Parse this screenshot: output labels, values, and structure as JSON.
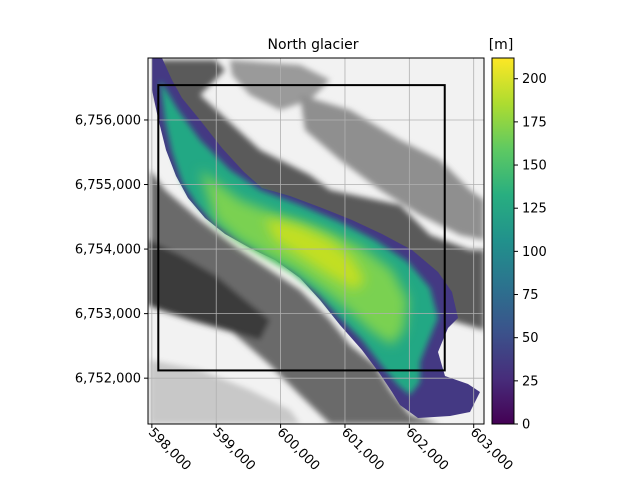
{
  "chart_data": {
    "type": "heatmap",
    "title": "North glacier",
    "xlabel": "",
    "ylabel": "",
    "xlim": [
      597940,
      603160
    ],
    "ylim": [
      6751290,
      6756960
    ],
    "x_ticks": [
      598000,
      599000,
      600000,
      601000,
      602000,
      603000
    ],
    "y_ticks": [
      6752000,
      6753000,
      6754000,
      6755000,
      6756000
    ],
    "x_tick_labels": [
      "598,000",
      "599,000",
      "600,000",
      "601,000",
      "602,000",
      "603,000"
    ],
    "y_tick_labels": [
      "6,752,000",
      "6,753,000",
      "6,754,000",
      "6,755,000",
      "6,756,000"
    ],
    "grid": true,
    "background": "grayscale hillshade",
    "colormap": "viridis",
    "colorbar": {
      "label": "[m]",
      "min": 0,
      "max": 212,
      "ticks": [
        0,
        25,
        50,
        75,
        100,
        125,
        150,
        175,
        200
      ],
      "tick_labels": [
        "0",
        "25",
        "50",
        "75",
        "100",
        "125",
        "150",
        "175",
        "200"
      ]
    },
    "glacier_centerline": [
      [
        598150,
        6756820,
        0
      ],
      [
        598500,
        6756150,
        70
      ],
      [
        598900,
        6755500,
        120
      ],
      [
        599400,
        6755000,
        135
      ],
      [
        599850,
        6754560,
        160
      ],
      [
        600200,
        6754280,
        180
      ],
      [
        600700,
        6754100,
        182
      ],
      [
        601100,
        6753850,
        195
      ],
      [
        601500,
        6753550,
        185
      ],
      [
        601900,
        6753050,
        175
      ],
      [
        602100,
        6752600,
        150
      ],
      [
        602300,
        6752100,
        95
      ],
      [
        602600,
        6751800,
        30
      ],
      [
        602900,
        6751600,
        0
      ]
    ],
    "outline_box": {
      "x": [
        598100,
        602550
      ],
      "y": [
        6752120,
        6756540
      ]
    }
  }
}
